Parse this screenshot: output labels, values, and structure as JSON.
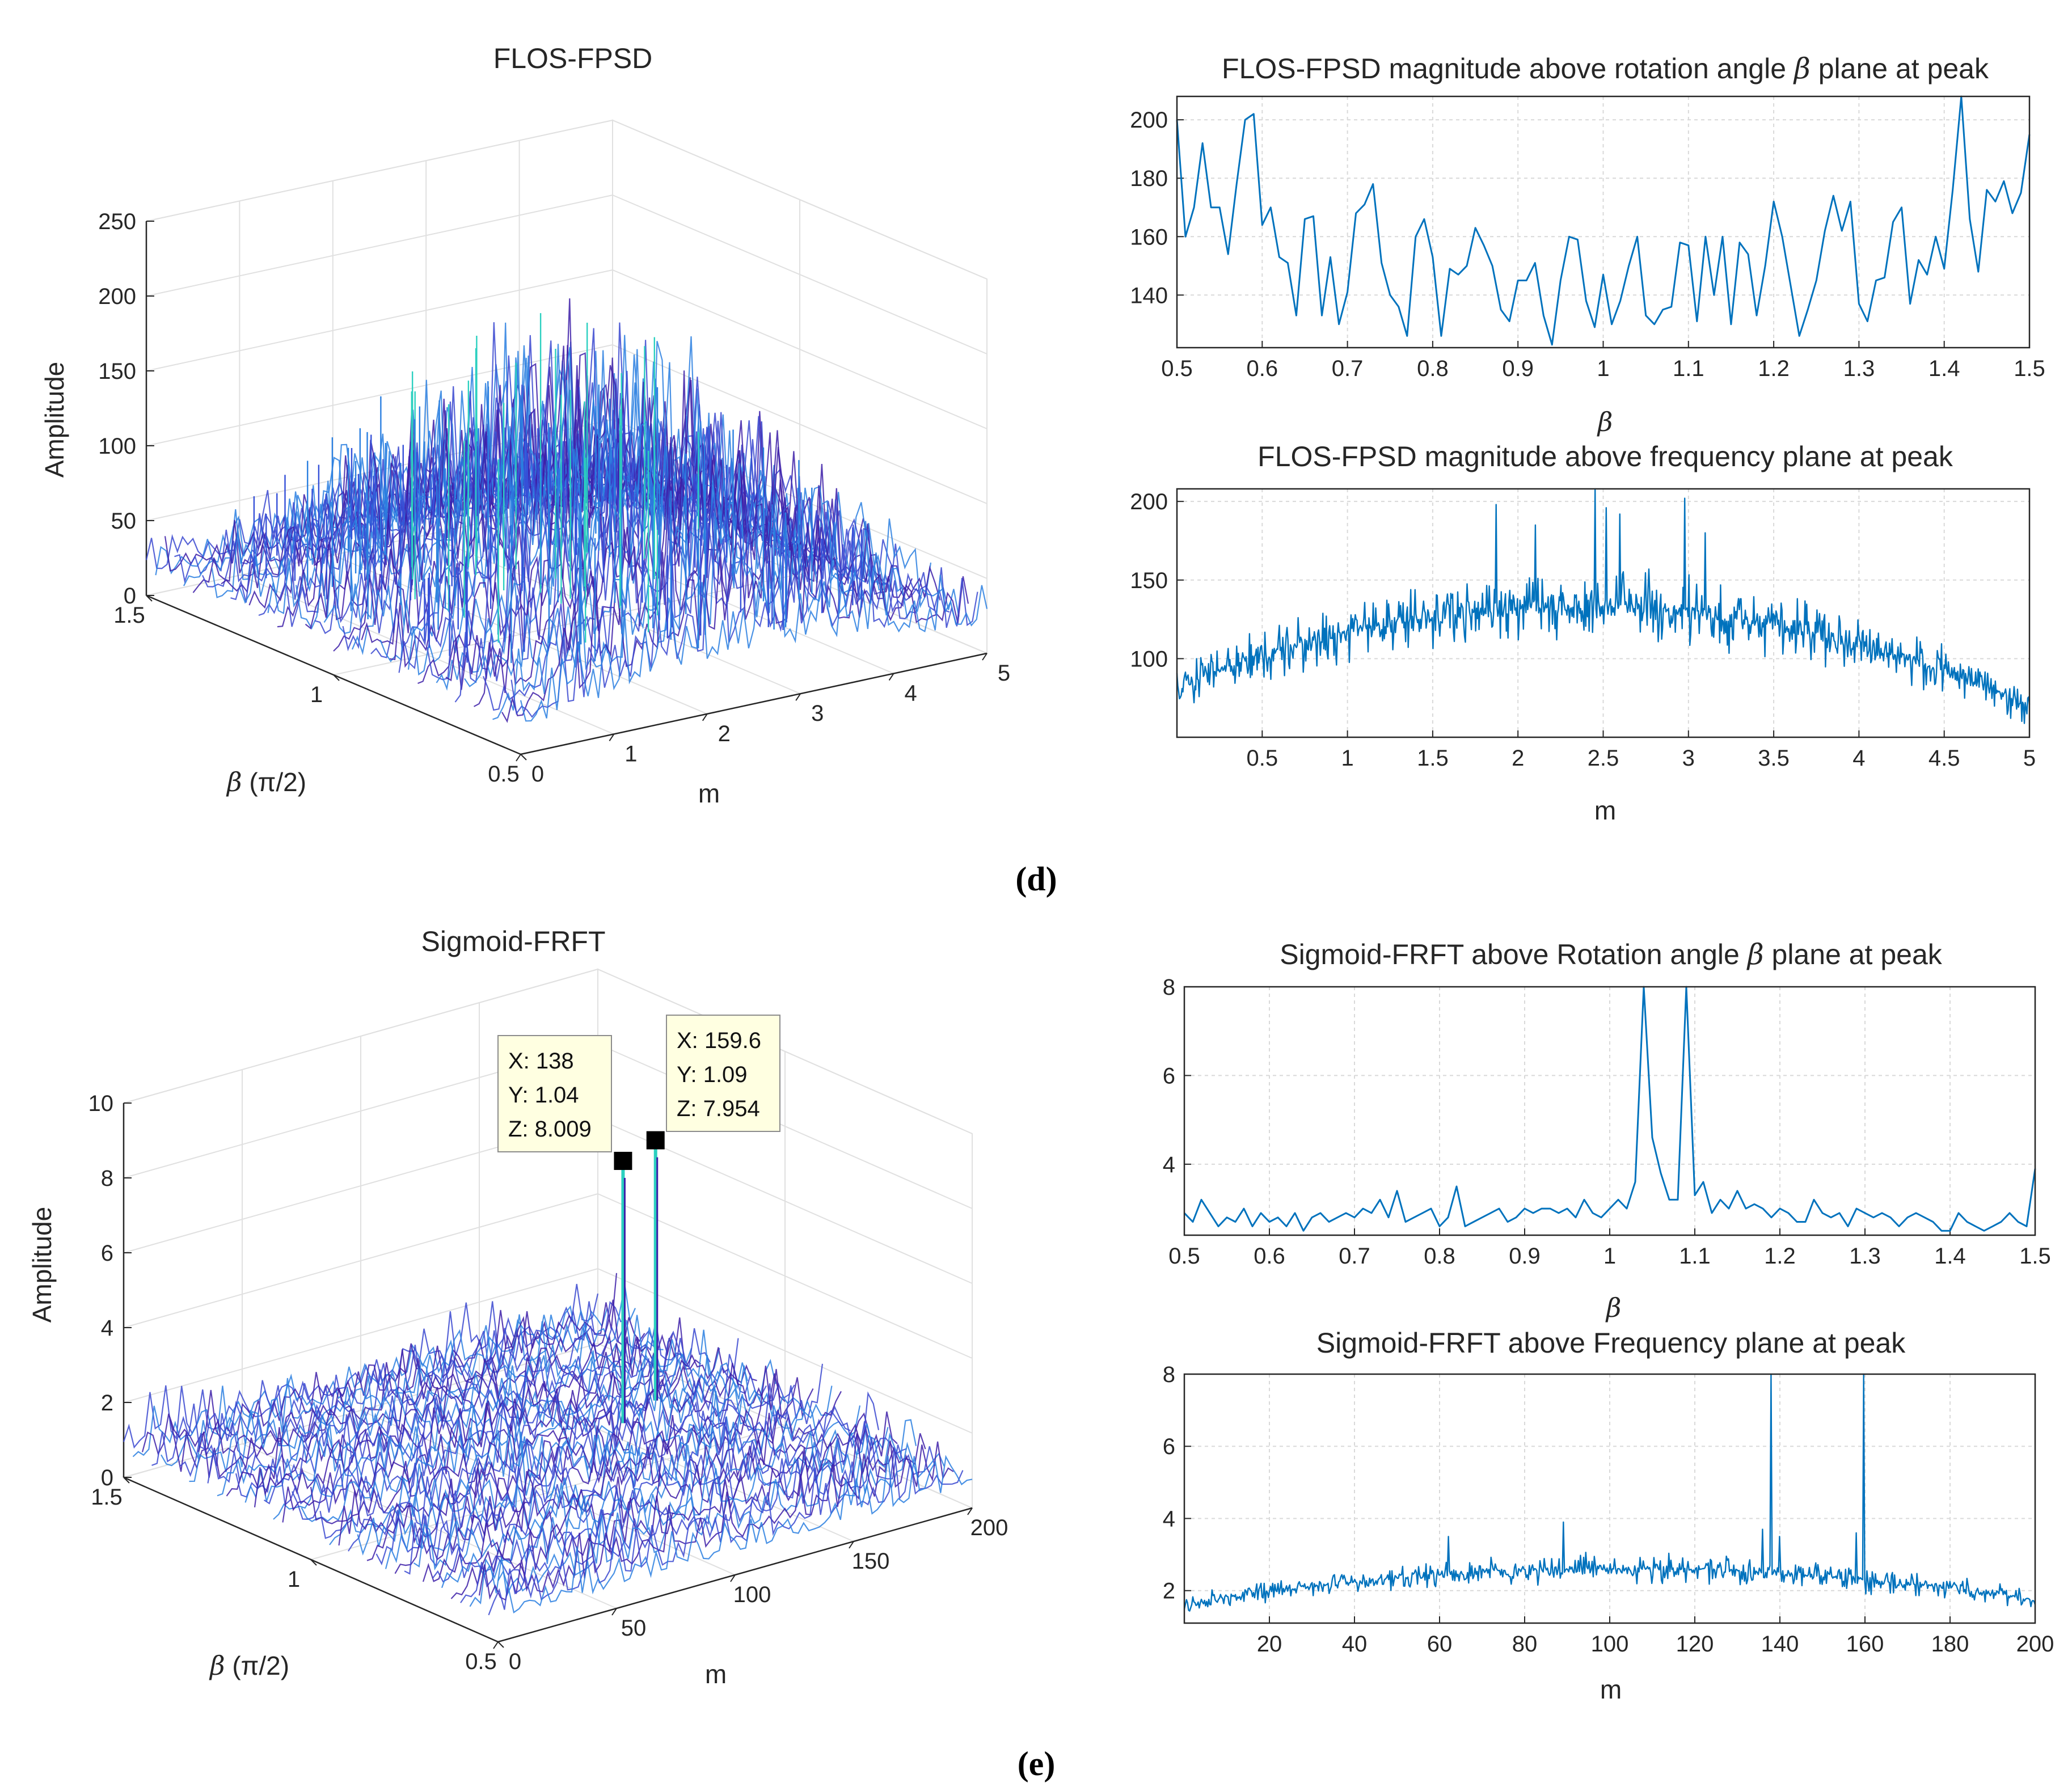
{
  "captions": [
    "(d)",
    "(e)"
  ],
  "colors": {
    "line": "#0072BD",
    "surface_low": "#3d1fa8",
    "surface_mid": "#2a7fe0",
    "surface_high": "#2bd0c0",
    "grid": "#d9d9d9"
  },
  "chart_data": [
    {
      "id": "d3",
      "type": "surface3d",
      "title": "FLOS-FPSD",
      "zlabel": "Amplitude",
      "xlabel": "m",
      "ylabel_sym": "β",
      "ylabel_unit": "(π/2)",
      "x_ticks": [
        "0",
        "1",
        "2",
        "3",
        "4",
        "5"
      ],
      "y_ticks": [
        "0.5",
        "1",
        "1.5"
      ],
      "z_ticks": [
        "0",
        "50",
        "100",
        "150",
        "200",
        "250"
      ],
      "xlim": [
        0,
        5
      ],
      "ylim": [
        0.5,
        1.5
      ],
      "zlim": [
        0,
        250
      ],
      "peak_amplitude": 210
    },
    {
      "id": "dtop",
      "type": "line",
      "title_pre": "FLOS-FPSD magnitude above rotation angle ",
      "title_sym": "β",
      "title_post": " plane at peak",
      "xlabel": "β",
      "xlim": [
        0.5,
        1.5
      ],
      "ylim": [
        122,
        208
      ],
      "x_ticks": [
        "0.5",
        "0.6",
        "0.7",
        "0.8",
        "0.9",
        "1",
        "1.1",
        "1.2",
        "1.3",
        "1.4",
        "1.5"
      ],
      "y_ticks": [
        "140",
        "160",
        "180",
        "200"
      ],
      "y_tick_values": [
        140,
        160,
        180,
        200
      ],
      "x": [
        0.5,
        0.51,
        0.52,
        0.53,
        0.54,
        0.55,
        0.56,
        0.57,
        0.58,
        0.59,
        0.6,
        0.61,
        0.62,
        0.63,
        0.64,
        0.65,
        0.66,
        0.67,
        0.68,
        0.69,
        0.7,
        0.71,
        0.72,
        0.73,
        0.74,
        0.75,
        0.76,
        0.77,
        0.78,
        0.79,
        0.8,
        0.81,
        0.82,
        0.83,
        0.84,
        0.85,
        0.86,
        0.87,
        0.88,
        0.89,
        0.9,
        0.91,
        0.92,
        0.93,
        0.94,
        0.95,
        0.96,
        0.97,
        0.98,
        0.99,
        1.0,
        1.01,
        1.02,
        1.03,
        1.04,
        1.05,
        1.06,
        1.07,
        1.08,
        1.09,
        1.1,
        1.11,
        1.12,
        1.13,
        1.14,
        1.15,
        1.16,
        1.17,
        1.18,
        1.19,
        1.2,
        1.21,
        1.22,
        1.23,
        1.24,
        1.25,
        1.26,
        1.27,
        1.28,
        1.29,
        1.3,
        1.31,
        1.32,
        1.33,
        1.34,
        1.35,
        1.36,
        1.37,
        1.38,
        1.39,
        1.4,
        1.41,
        1.42,
        1.43,
        1.44,
        1.45,
        1.46,
        1.47,
        1.48,
        1.49,
        1.5
      ],
      "values": [
        200,
        160,
        170,
        192,
        170,
        170,
        154,
        178,
        200,
        202,
        164,
        170,
        153,
        151,
        133,
        166,
        167,
        133,
        153,
        130,
        141,
        168,
        171,
        178,
        151,
        140,
        136,
        126,
        160,
        166,
        153,
        126,
        149,
        147,
        150,
        163,
        157,
        150,
        135,
        131,
        145,
        145,
        151,
        133,
        123,
        145,
        160,
        159,
        138,
        129,
        147,
        130,
        138,
        150,
        160,
        133,
        130,
        135,
        136,
        158,
        157,
        131,
        160,
        140,
        160,
        130,
        158,
        154,
        133,
        150,
        172,
        160,
        143,
        126,
        135,
        145,
        162,
        174,
        162,
        172,
        137,
        131,
        145,
        146,
        165,
        170,
        137,
        152,
        147,
        160,
        149,
        176,
        208,
        166,
        148,
        176,
        172,
        179,
        168,
        175,
        195
      ]
    },
    {
      "id": "dbot",
      "type": "line",
      "title": "FLOS-FPSD magnitude above frequency plane at peak",
      "xlabel": "m",
      "xlim": [
        0,
        5
      ],
      "ylim": [
        50,
        208
      ],
      "x_ticks": [
        "0.5",
        "1",
        "1.5",
        "2",
        "2.5",
        "3",
        "3.5",
        "4",
        "4.5",
        "5"
      ],
      "x_tick_values": [
        0.5,
        1,
        1.5,
        2,
        2.5,
        3,
        3.5,
        4,
        4.5,
        5
      ],
      "y_ticks": [
        "100",
        "150",
        "200"
      ],
      "y_tick_values": [
        100,
        150,
        200
      ],
      "n_points": 1000,
      "baseline_start": 80,
      "baseline_center": 133,
      "baseline_end": 68,
      "noise_amp": 26,
      "spikes": [
        {
          "x": 1.87,
          "v": 198
        },
        {
          "x": 2.45,
          "v": 208
        },
        {
          "x": 2.52,
          "v": 196
        },
        {
          "x": 2.6,
          "v": 192
        },
        {
          "x": 2.98,
          "v": 202
        },
        {
          "x": 2.1,
          "v": 185
        },
        {
          "x": 3.1,
          "v": 180
        }
      ]
    },
    {
      "id": "e3",
      "type": "surface3d",
      "title": "Sigmoid-FRFT",
      "zlabel": "Amplitude",
      "xlabel": "m",
      "ylabel_sym": "β",
      "ylabel_unit": "(π/2)",
      "x_ticks": [
        "0",
        "50",
        "100",
        "150",
        "200"
      ],
      "y_ticks": [
        "0.5",
        "1",
        "1.5"
      ],
      "z_ticks": [
        "0",
        "2",
        "4",
        "6",
        "8",
        "10"
      ],
      "xlim": [
        0,
        200
      ],
      "ylim": [
        0.5,
        1.5
      ],
      "zlim": [
        0,
        10
      ],
      "datatips": [
        {
          "x": "X: 138",
          "y": "Y: 1.04",
          "z": "Z: 8.009",
          "xv": 138,
          "yv": 1.04,
          "zv": 8.009
        },
        {
          "x": "X: 159.6",
          "y": "Y: 1.09",
          "z": "Z: 7.954",
          "xv": 159.6,
          "yv": 1.09,
          "zv": 7.954
        }
      ]
    },
    {
      "id": "etop",
      "type": "line",
      "title_pre": "Sigmoid-FRFT above Rotation angle ",
      "title_sym": "β",
      "title_post": " plane at peak",
      "xlabel": "β",
      "xlim": [
        0.5,
        1.5
      ],
      "ylim": [
        2.4,
        8
      ],
      "x_ticks": [
        "0.5",
        "0.6",
        "0.7",
        "0.8",
        "0.9",
        "1",
        "1.1",
        "1.2",
        "1.3",
        "1.4",
        "1.5"
      ],
      "y_ticks": [
        "4",
        "6",
        "8"
      ],
      "y_tick_values": [
        4,
        6,
        8
      ],
      "x": [
        0.5,
        0.51,
        0.52,
        0.53,
        0.54,
        0.55,
        0.56,
        0.57,
        0.58,
        0.59,
        0.6,
        0.61,
        0.62,
        0.63,
        0.64,
        0.65,
        0.66,
        0.67,
        0.68,
        0.69,
        0.7,
        0.71,
        0.72,
        0.73,
        0.74,
        0.75,
        0.76,
        0.77,
        0.78,
        0.79,
        0.8,
        0.81,
        0.82,
        0.83,
        0.84,
        0.85,
        0.86,
        0.87,
        0.88,
        0.89,
        0.9,
        0.91,
        0.92,
        0.93,
        0.94,
        0.95,
        0.96,
        0.97,
        0.98,
        0.99,
        1.0,
        1.01,
        1.02,
        1.03,
        1.04,
        1.05,
        1.06,
        1.07,
        1.08,
        1.09,
        1.1,
        1.11,
        1.12,
        1.13,
        1.14,
        1.15,
        1.16,
        1.17,
        1.18,
        1.19,
        1.2,
        1.21,
        1.22,
        1.23,
        1.24,
        1.25,
        1.26,
        1.27,
        1.28,
        1.29,
        1.3,
        1.31,
        1.32,
        1.33,
        1.34,
        1.35,
        1.36,
        1.37,
        1.38,
        1.39,
        1.4,
        1.41,
        1.42,
        1.43,
        1.44,
        1.45,
        1.46,
        1.47,
        1.48,
        1.49,
        1.5
      ],
      "values": [
        2.9,
        2.7,
        3.2,
        2.9,
        2.6,
        2.8,
        2.7,
        3.0,
        2.6,
        2.9,
        2.7,
        2.8,
        2.6,
        2.9,
        2.5,
        2.8,
        2.9,
        2.7,
        2.8,
        2.9,
        2.8,
        3.0,
        2.9,
        3.2,
        2.8,
        3.4,
        2.7,
        2.8,
        2.9,
        3.0,
        2.6,
        2.8,
        3.5,
        2.6,
        2.7,
        2.8,
        2.9,
        3.0,
        2.7,
        2.8,
        3.0,
        2.9,
        3.0,
        3.0,
        2.9,
        3.0,
        2.8,
        3.2,
        2.9,
        2.8,
        3.0,
        3.2,
        3.0,
        3.6,
        8.0,
        4.6,
        3.8,
        3.2,
        3.2,
        8.0,
        3.3,
        3.6,
        2.9,
        3.2,
        3.0,
        3.4,
        3.0,
        3.1,
        3.0,
        2.8,
        3.0,
        2.9,
        2.7,
        2.7,
        3.2,
        2.9,
        2.8,
        2.9,
        2.6,
        3.0,
        2.9,
        2.8,
        2.9,
        2.8,
        2.6,
        2.8,
        2.9,
        2.8,
        2.7,
        2.5,
        2.5,
        2.9,
        2.7,
        2.6,
        2.5,
        2.6,
        2.7,
        2.9,
        2.7,
        2.6,
        3.9
      ]
    },
    {
      "id": "ebot",
      "type": "line",
      "title": "Sigmoid-FRFT above Frequency plane at peak",
      "xlabel": "m",
      "xlim": [
        0,
        200
      ],
      "ylim": [
        1.1,
        8
      ],
      "x_ticks": [
        "20",
        "40",
        "60",
        "80",
        "100",
        "120",
        "140",
        "160",
        "180",
        "200"
      ],
      "x_tick_values": [
        20,
        40,
        60,
        80,
        100,
        120,
        140,
        160,
        180,
        200
      ],
      "y_ticks": [
        "2",
        "4",
        "6",
        "8"
      ],
      "y_tick_values": [
        2,
        4,
        6,
        8
      ],
      "n_points": 800,
      "baseline_start": 1.6,
      "baseline_center": 2.6,
      "baseline_end": 1.7,
      "noise_amp": 0.5,
      "spikes": [
        {
          "x": 138,
          "v": 8.0
        },
        {
          "x": 159.6,
          "v": 8.0
        },
        {
          "x": 62,
          "v": 3.5
        },
        {
          "x": 89,
          "v": 3.9
        },
        {
          "x": 136,
          "v": 3.7
        },
        {
          "x": 158,
          "v": 3.6
        },
        {
          "x": 140,
          "v": 3.5
        }
      ]
    }
  ]
}
